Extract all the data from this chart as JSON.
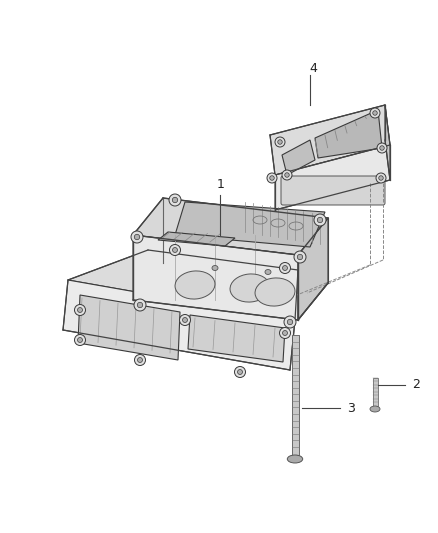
{
  "background_color": "#ffffff",
  "fig_width": 4.38,
  "fig_height": 5.33,
  "dpi": 100,
  "label_fontsize": 9,
  "label_color": "#222222",
  "line_color": "#444444"
}
